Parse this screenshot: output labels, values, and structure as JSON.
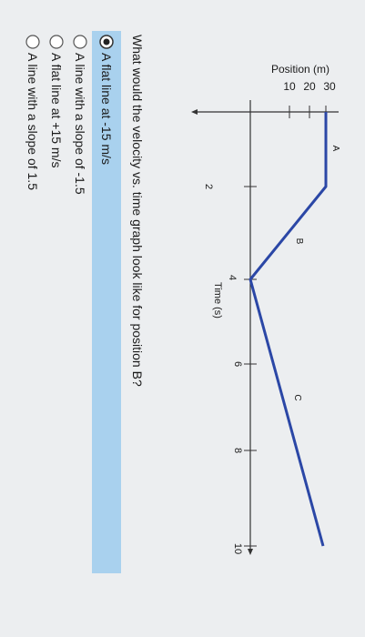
{
  "graph": {
    "y_axis_title": "Position (m)",
    "y_ticks": [
      "10",
      "20",
      "30"
    ],
    "x_axis_title": "Time (s)",
    "x_ticks": [
      "2",
      "4",
      "6",
      "8",
      "10"
    ],
    "segment_labels": [
      "A",
      "B",
      "C"
    ]
  },
  "question": "What would the velocity vs. time graph look like for position B?",
  "options": [
    "A flat line at -15 m/s",
    "A line with a slope of -1.5",
    "A flat line at +15 m/s",
    "A line with a slope of 1.5"
  ]
}
